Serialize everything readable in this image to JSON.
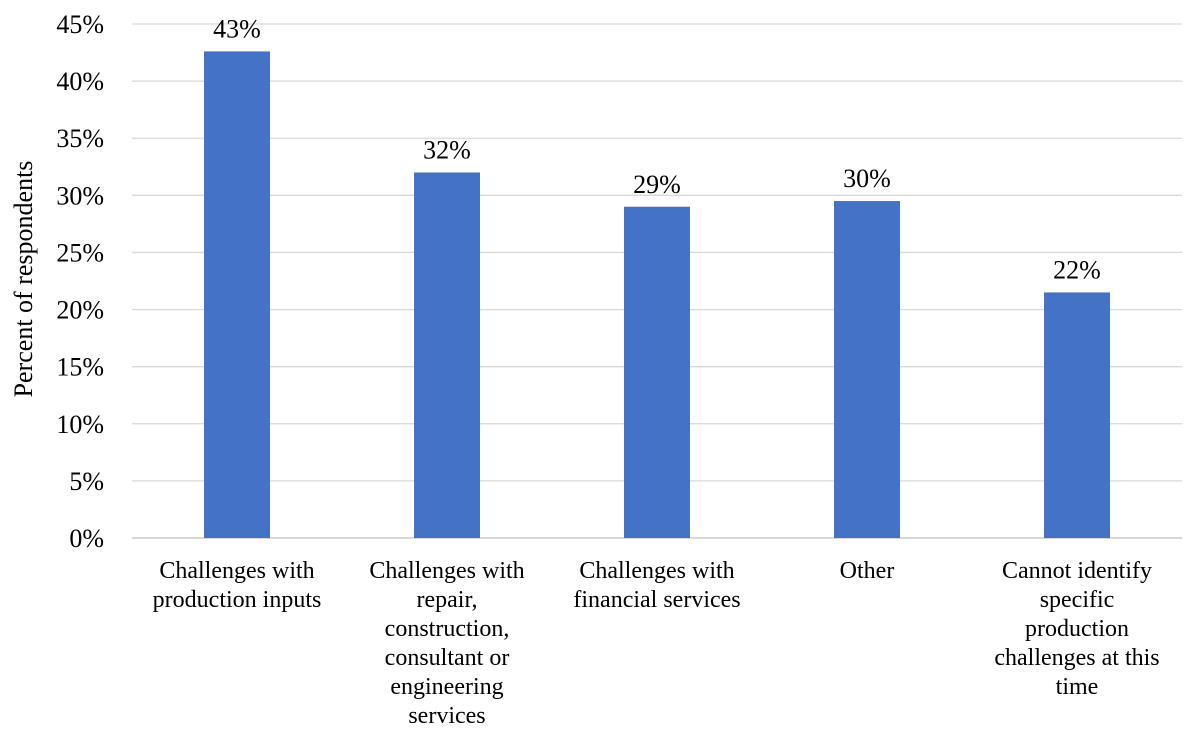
{
  "chart_data": {
    "type": "bar",
    "categories": [
      [
        "Challenges with",
        "production inputs"
      ],
      [
        "Challenges with",
        "repair,",
        "construction,",
        "consultant or",
        "engineering",
        "services"
      ],
      [
        "Challenges with",
        "financial services"
      ],
      [
        "Other"
      ],
      [
        "Cannot identify",
        "specific",
        "production",
        "challenges at this",
        "time"
      ]
    ],
    "values": [
      42.6,
      32.0,
      29.0,
      29.5,
      21.5
    ],
    "data_labels": [
      "43%",
      "32%",
      "29%",
      "30%",
      "22%"
    ],
    "ylabel": "Percent of respondents",
    "xlabel": "",
    "title": "",
    "ylim": [
      0,
      45
    ],
    "yticks": [
      "0%",
      "5%",
      "10%",
      "15%",
      "20%",
      "25%",
      "30%",
      "35%",
      "40%",
      "45%"
    ],
    "grid": true,
    "legend": "none",
    "bar_color": "#4472C4",
    "grid_color": "#D9D9D9"
  }
}
